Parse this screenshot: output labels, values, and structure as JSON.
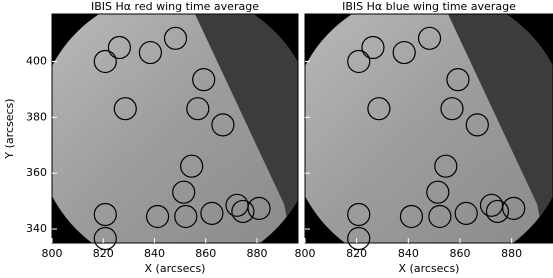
{
  "chart_data": [
    {
      "type": "scatter",
      "title": "IBIS Hα red wing time average",
      "xlabel": "X (arcsecs)",
      "ylabel": "Y (arcsecs)",
      "xlim": [
        800,
        896
      ],
      "ylim": [
        335,
        417
      ],
      "xticks": [
        800,
        820,
        840,
        860,
        880
      ],
      "yticks": [
        340,
        360,
        380,
        400
      ],
      "show_ytick_labels": true,
      "series": [
        {
          "color": "#000000",
          "x": [
            826.3,
            820.8,
            838.4,
            848.2,
            859.2,
            828.6,
            856.9,
            866.7,
            854.5,
            851.4,
            841.2,
            852.2,
            862.4,
            872.2,
            874.5,
            880.8,
            820.8,
            820.8
          ],
          "values": [
            405.0,
            400.0,
            403.2,
            408.3,
            393.5,
            383.1,
            383.1,
            377.3,
            362.5,
            353.2,
            344.5,
            344.5,
            345.6,
            348.5,
            346.3,
            347.4,
            345.2,
            336.6
          ]
        }
      ]
    },
    {
      "type": "scatter",
      "title": "IBIS Hα blue wing time average",
      "xlabel": "X (arcsecs)",
      "xlim": [
        800,
        896
      ],
      "ylim": [
        335,
        417
      ],
      "xticks": [
        800,
        820,
        840,
        860,
        880
      ],
      "yticks": [
        340,
        360,
        380,
        400
      ],
      "show_ytick_labels": false,
      "series": [
        {
          "color": "#000000",
          "x": [
            826.3,
            820.8,
            838.4,
            848.2,
            859.2,
            828.6,
            856.9,
            866.7,
            854.5,
            851.4,
            841.2,
            852.2,
            862.4,
            872.2,
            874.5,
            880.8,
            820.8,
            820.8
          ],
          "values": [
            405.0,
            400.0,
            403.2,
            408.3,
            393.5,
            383.1,
            383.1,
            377.3,
            362.5,
            353.2,
            344.5,
            344.5,
            345.6,
            348.5,
            346.3,
            347.4,
            345.2,
            336.6
          ]
        }
      ]
    }
  ]
}
